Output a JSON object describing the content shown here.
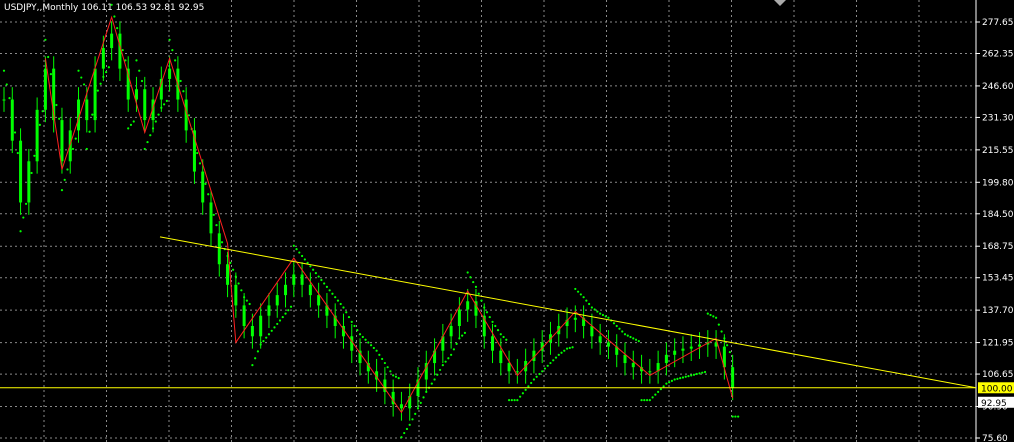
{
  "window": {
    "title": "USDJPY,,Monthly",
    "ohlc": "106.11 106.53 92.81 92.95"
  },
  "colors": {
    "background": "#000000",
    "grid": "#8a8a8a",
    "candles": "#00ff00",
    "zigzag": "#ff2020",
    "psar": "#00ff00",
    "trendline": "#ffff00",
    "level_line": "#ffff00",
    "price_tag_bg": "#ffffff",
    "level_tag_bg": "#ffff00"
  },
  "chart_data": {
    "type": "candlestick",
    "y_axis_ticks": [
      "277.65",
      "262.35",
      "246.60",
      "231.30",
      "215.55",
      "199.80",
      "184.50",
      "168.75",
      "153.45",
      "137.70",
      "121.95",
      "106.65",
      "90.90",
      "75.60"
    ],
    "ylim": [
      75.6,
      285
    ],
    "grid": true,
    "level_tag": "100.00",
    "level_value": 100.0,
    "price_tag": "92.95",
    "price_value": 92.95,
    "trendline": {
      "start_value": 173.3,
      "end_value": 100.0
    },
    "zigzag_points": [
      {
        "i": 5,
        "v": 260
      },
      {
        "i": 7,
        "v": 206
      },
      {
        "i": 13,
        "v": 280
      },
      {
        "i": 17,
        "v": 224
      },
      {
        "i": 20,
        "v": 260
      },
      {
        "i": 27,
        "v": 170
      },
      {
        "i": 28,
        "v": 122
      },
      {
        "i": 35,
        "v": 163
      },
      {
        "i": 48,
        "v": 88
      },
      {
        "i": 56,
        "v": 147
      },
      {
        "i": 62,
        "v": 106
      },
      {
        "i": 69,
        "v": 137
      },
      {
        "i": 78,
        "v": 106
      },
      {
        "i": 86,
        "v": 124
      },
      {
        "i": 88,
        "v": 95
      }
    ],
    "series_points": [
      {
        "i": 0,
        "v": 240
      },
      {
        "i": 1,
        "v": 220
      },
      {
        "i": 2,
        "v": 190
      },
      {
        "i": 3,
        "v": 210
      },
      {
        "i": 4,
        "v": 235
      },
      {
        "i": 5,
        "v": 255
      },
      {
        "i": 6,
        "v": 230
      },
      {
        "i": 7,
        "v": 210
      },
      {
        "i": 8,
        "v": 225
      },
      {
        "i": 9,
        "v": 240
      },
      {
        "i": 10,
        "v": 230
      },
      {
        "i": 11,
        "v": 255
      },
      {
        "i": 12,
        "v": 265
      },
      {
        "i": 13,
        "v": 272
      },
      {
        "i": 14,
        "v": 255
      },
      {
        "i": 15,
        "v": 240
      },
      {
        "i": 16,
        "v": 245
      },
      {
        "i": 17,
        "v": 230
      },
      {
        "i": 18,
        "v": 240
      },
      {
        "i": 19,
        "v": 250
      },
      {
        "i": 20,
        "v": 255
      },
      {
        "i": 21,
        "v": 240
      },
      {
        "i": 22,
        "v": 225
      },
      {
        "i": 23,
        "v": 205
      },
      {
        "i": 24,
        "v": 190
      },
      {
        "i": 25,
        "v": 175
      },
      {
        "i": 26,
        "v": 160
      },
      {
        "i": 27,
        "v": 150
      },
      {
        "i": 28,
        "v": 140
      },
      {
        "i": 29,
        "v": 130
      },
      {
        "i": 30,
        "v": 125
      },
      {
        "i": 31,
        "v": 135
      },
      {
        "i": 32,
        "v": 140
      },
      {
        "i": 33,
        "v": 145
      },
      {
        "i": 34,
        "v": 150
      },
      {
        "i": 35,
        "v": 155
      },
      {
        "i": 36,
        "v": 150
      },
      {
        "i": 37,
        "v": 145
      },
      {
        "i": 38,
        "v": 140
      },
      {
        "i": 39,
        "v": 135
      },
      {
        "i": 40,
        "v": 130
      },
      {
        "i": 41,
        "v": 125
      },
      {
        "i": 42,
        "v": 118
      },
      {
        "i": 43,
        "v": 112
      },
      {
        "i": 44,
        "v": 108
      },
      {
        "i": 45,
        "v": 104
      },
      {
        "i": 46,
        "v": 98
      },
      {
        "i": 47,
        "v": 92
      },
      {
        "i": 48,
        "v": 90
      },
      {
        "i": 49,
        "v": 96
      },
      {
        "i": 50,
        "v": 104
      },
      {
        "i": 51,
        "v": 112
      },
      {
        "i": 52,
        "v": 118
      },
      {
        "i": 53,
        "v": 125
      },
      {
        "i": 54,
        "v": 130
      },
      {
        "i": 55,
        "v": 138
      },
      {
        "i": 56,
        "v": 142
      },
      {
        "i": 57,
        "v": 135
      },
      {
        "i": 58,
        "v": 125
      },
      {
        "i": 59,
        "v": 118
      },
      {
        "i": 60,
        "v": 112
      },
      {
        "i": 61,
        "v": 108
      },
      {
        "i": 62,
        "v": 108
      },
      {
        "i": 63,
        "v": 113
      },
      {
        "i": 64,
        "v": 118
      },
      {
        "i": 65,
        "v": 122
      },
      {
        "i": 66,
        "v": 126
      },
      {
        "i": 67,
        "v": 130
      },
      {
        "i": 68,
        "v": 133
      },
      {
        "i": 69,
        "v": 134
      },
      {
        "i": 70,
        "v": 130
      },
      {
        "i": 71,
        "v": 125
      },
      {
        "i": 72,
        "v": 122
      },
      {
        "i": 73,
        "v": 120
      },
      {
        "i": 74,
        "v": 116
      },
      {
        "i": 75,
        "v": 112
      },
      {
        "i": 76,
        "v": 110
      },
      {
        "i": 77,
        "v": 108
      },
      {
        "i": 78,
        "v": 108
      },
      {
        "i": 79,
        "v": 112
      },
      {
        "i": 80,
        "v": 116
      },
      {
        "i": 81,
        "v": 118
      },
      {
        "i": 82,
        "v": 119
      },
      {
        "i": 83,
        "v": 120
      },
      {
        "i": 84,
        "v": 121
      },
      {
        "i": 85,
        "v": 122
      },
      {
        "i": 86,
        "v": 120
      },
      {
        "i": 87,
        "v": 110
      },
      {
        "i": 88,
        "v": 100
      }
    ]
  }
}
